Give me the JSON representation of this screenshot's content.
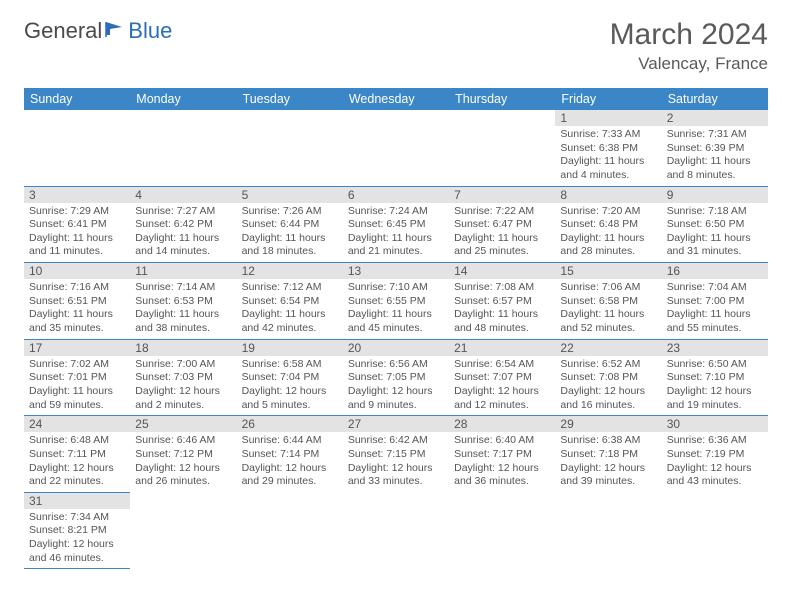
{
  "logo": {
    "general": "General",
    "blue": "Blue"
  },
  "header": {
    "month": "March 2024",
    "location": "Valencay, France"
  },
  "colors": {
    "header_bg": "#3b86c7",
    "daynum_bg": "#e3e3e3",
    "rule": "#3b86c7"
  },
  "weekdays": [
    "Sunday",
    "Monday",
    "Tuesday",
    "Wednesday",
    "Thursday",
    "Friday",
    "Saturday"
  ],
  "weeks": [
    [
      null,
      null,
      null,
      null,
      null,
      {
        "n": "1",
        "sr": "7:33 AM",
        "ss": "6:38 PM",
        "dl": "11 hours and 4 minutes."
      },
      {
        "n": "2",
        "sr": "7:31 AM",
        "ss": "6:39 PM",
        "dl": "11 hours and 8 minutes."
      }
    ],
    [
      {
        "n": "3",
        "sr": "7:29 AM",
        "ss": "6:41 PM",
        "dl": "11 hours and 11 minutes."
      },
      {
        "n": "4",
        "sr": "7:27 AM",
        "ss": "6:42 PM",
        "dl": "11 hours and 14 minutes."
      },
      {
        "n": "5",
        "sr": "7:26 AM",
        "ss": "6:44 PM",
        "dl": "11 hours and 18 minutes."
      },
      {
        "n": "6",
        "sr": "7:24 AM",
        "ss": "6:45 PM",
        "dl": "11 hours and 21 minutes."
      },
      {
        "n": "7",
        "sr": "7:22 AM",
        "ss": "6:47 PM",
        "dl": "11 hours and 25 minutes."
      },
      {
        "n": "8",
        "sr": "7:20 AM",
        "ss": "6:48 PM",
        "dl": "11 hours and 28 minutes."
      },
      {
        "n": "9",
        "sr": "7:18 AM",
        "ss": "6:50 PM",
        "dl": "11 hours and 31 minutes."
      }
    ],
    [
      {
        "n": "10",
        "sr": "7:16 AM",
        "ss": "6:51 PM",
        "dl": "11 hours and 35 minutes."
      },
      {
        "n": "11",
        "sr": "7:14 AM",
        "ss": "6:53 PM",
        "dl": "11 hours and 38 minutes."
      },
      {
        "n": "12",
        "sr": "7:12 AM",
        "ss": "6:54 PM",
        "dl": "11 hours and 42 minutes."
      },
      {
        "n": "13",
        "sr": "7:10 AM",
        "ss": "6:55 PM",
        "dl": "11 hours and 45 minutes."
      },
      {
        "n": "14",
        "sr": "7:08 AM",
        "ss": "6:57 PM",
        "dl": "11 hours and 48 minutes."
      },
      {
        "n": "15",
        "sr": "7:06 AM",
        "ss": "6:58 PM",
        "dl": "11 hours and 52 minutes."
      },
      {
        "n": "16",
        "sr": "7:04 AM",
        "ss": "7:00 PM",
        "dl": "11 hours and 55 minutes."
      }
    ],
    [
      {
        "n": "17",
        "sr": "7:02 AM",
        "ss": "7:01 PM",
        "dl": "11 hours and 59 minutes."
      },
      {
        "n": "18",
        "sr": "7:00 AM",
        "ss": "7:03 PM",
        "dl": "12 hours and 2 minutes."
      },
      {
        "n": "19",
        "sr": "6:58 AM",
        "ss": "7:04 PM",
        "dl": "12 hours and 5 minutes."
      },
      {
        "n": "20",
        "sr": "6:56 AM",
        "ss": "7:05 PM",
        "dl": "12 hours and 9 minutes."
      },
      {
        "n": "21",
        "sr": "6:54 AM",
        "ss": "7:07 PM",
        "dl": "12 hours and 12 minutes."
      },
      {
        "n": "22",
        "sr": "6:52 AM",
        "ss": "7:08 PM",
        "dl": "12 hours and 16 minutes."
      },
      {
        "n": "23",
        "sr": "6:50 AM",
        "ss": "7:10 PM",
        "dl": "12 hours and 19 minutes."
      }
    ],
    [
      {
        "n": "24",
        "sr": "6:48 AM",
        "ss": "7:11 PM",
        "dl": "12 hours and 22 minutes."
      },
      {
        "n": "25",
        "sr": "6:46 AM",
        "ss": "7:12 PM",
        "dl": "12 hours and 26 minutes."
      },
      {
        "n": "26",
        "sr": "6:44 AM",
        "ss": "7:14 PM",
        "dl": "12 hours and 29 minutes."
      },
      {
        "n": "27",
        "sr": "6:42 AM",
        "ss": "7:15 PM",
        "dl": "12 hours and 33 minutes."
      },
      {
        "n": "28",
        "sr": "6:40 AM",
        "ss": "7:17 PM",
        "dl": "12 hours and 36 minutes."
      },
      {
        "n": "29",
        "sr": "6:38 AM",
        "ss": "7:18 PM",
        "dl": "12 hours and 39 minutes."
      },
      {
        "n": "30",
        "sr": "6:36 AM",
        "ss": "7:19 PM",
        "dl": "12 hours and 43 minutes."
      }
    ],
    [
      {
        "n": "31",
        "sr": "7:34 AM",
        "ss": "8:21 PM",
        "dl": "12 hours and 46 minutes."
      },
      null,
      null,
      null,
      null,
      null,
      null
    ]
  ]
}
